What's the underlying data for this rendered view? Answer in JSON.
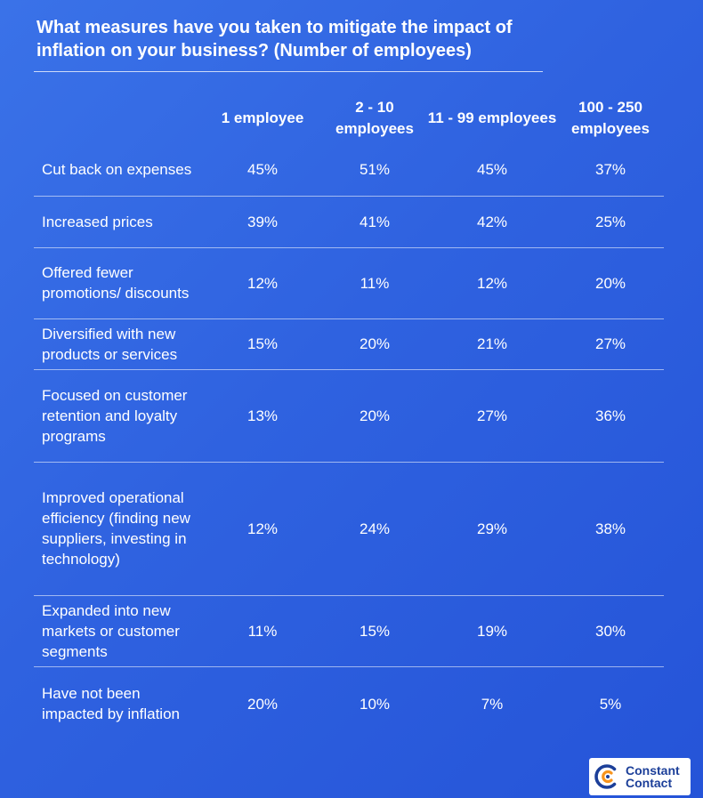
{
  "title": "What measures have you taken to mitigate the impact of inflation on your business? (Number of employees)",
  "chart_data": {
    "type": "table",
    "columns": [
      "1 employee",
      "2 - 10 employees",
      "11 - 99 employees",
      "100 - 250 employees"
    ],
    "rows": [
      {
        "label": "Cut back on expenses",
        "values": [
          "45%",
          "51%",
          "45%",
          "37%"
        ]
      },
      {
        "label": "Increased prices",
        "values": [
          "39%",
          "41%",
          "42%",
          "25%"
        ]
      },
      {
        "label": "Offered fewer promotions/ discounts",
        "values": [
          "12%",
          "11%",
          "12%",
          "20%"
        ]
      },
      {
        "label": "Diversified with new products or services",
        "values": [
          "15%",
          "20%",
          "21%",
          "27%"
        ]
      },
      {
        "label": "Focused on customer retention and loyalty programs",
        "values": [
          "13%",
          "20%",
          "27%",
          "36%"
        ]
      },
      {
        "label": "Improved operational efficiency (finding new suppliers, investing in technology)",
        "values": [
          "12%",
          "24%",
          "29%",
          "38%"
        ]
      },
      {
        "label": "Expanded into new markets or customer segments",
        "values": [
          "11%",
          "15%",
          "19%",
          "30%"
        ]
      },
      {
        "label": "Have not been impacted by inflation",
        "values": [
          "20%",
          "10%",
          "7%",
          "5%"
        ]
      }
    ]
  },
  "logo": {
    "line1": "Constant",
    "line2": "Contact",
    "icon": "constant-contact-logo-icon",
    "icon_color": "#1c3f99",
    "accent_color": "#f7941d"
  }
}
